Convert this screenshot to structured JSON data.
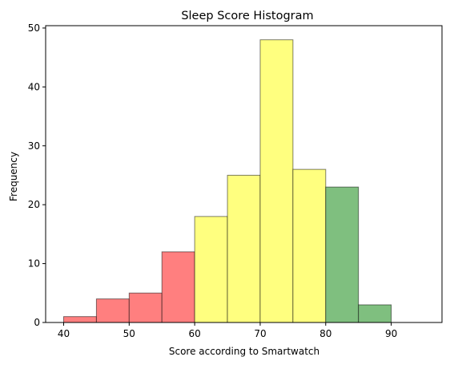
{
  "chart_data": {
    "type": "bar",
    "title": "Sleep Score Histogram",
    "xlabel": "Score according to Smartwatch",
    "ylabel": "Frequency",
    "xlim": [
      37.25,
      97.75
    ],
    "ylim": [
      0,
      50.4
    ],
    "xticks": [
      40,
      50,
      60,
      70,
      80,
      90
    ],
    "yticks": [
      0,
      10,
      20,
      30,
      40,
      50
    ],
    "grid": false,
    "bins": [
      {
        "start": 40,
        "end": 45,
        "value": 1,
        "color": "#ff7f7f"
      },
      {
        "start": 45,
        "end": 50,
        "value": 4,
        "color": "#ff7f7f"
      },
      {
        "start": 50,
        "end": 55,
        "value": 5,
        "color": "#ff7f7f"
      },
      {
        "start": 55,
        "end": 60,
        "value": 12,
        "color": "#ff7f7f"
      },
      {
        "start": 60,
        "end": 65,
        "value": 18,
        "color": "#ffff7f"
      },
      {
        "start": 65,
        "end": 70,
        "value": 25,
        "color": "#ffff7f"
      },
      {
        "start": 70,
        "end": 75,
        "value": 48,
        "color": "#ffff7f"
      },
      {
        "start": 75,
        "end": 80,
        "value": 26,
        "color": "#ffff7f"
      },
      {
        "start": 80,
        "end": 85,
        "value": 23,
        "color": "#7fbf7f"
      },
      {
        "start": 85,
        "end": 90,
        "value": 3,
        "color": "#7fbf7f"
      },
      {
        "start": 90,
        "end": 95,
        "value": 0,
        "color": "#7fbf7f"
      }
    ]
  }
}
